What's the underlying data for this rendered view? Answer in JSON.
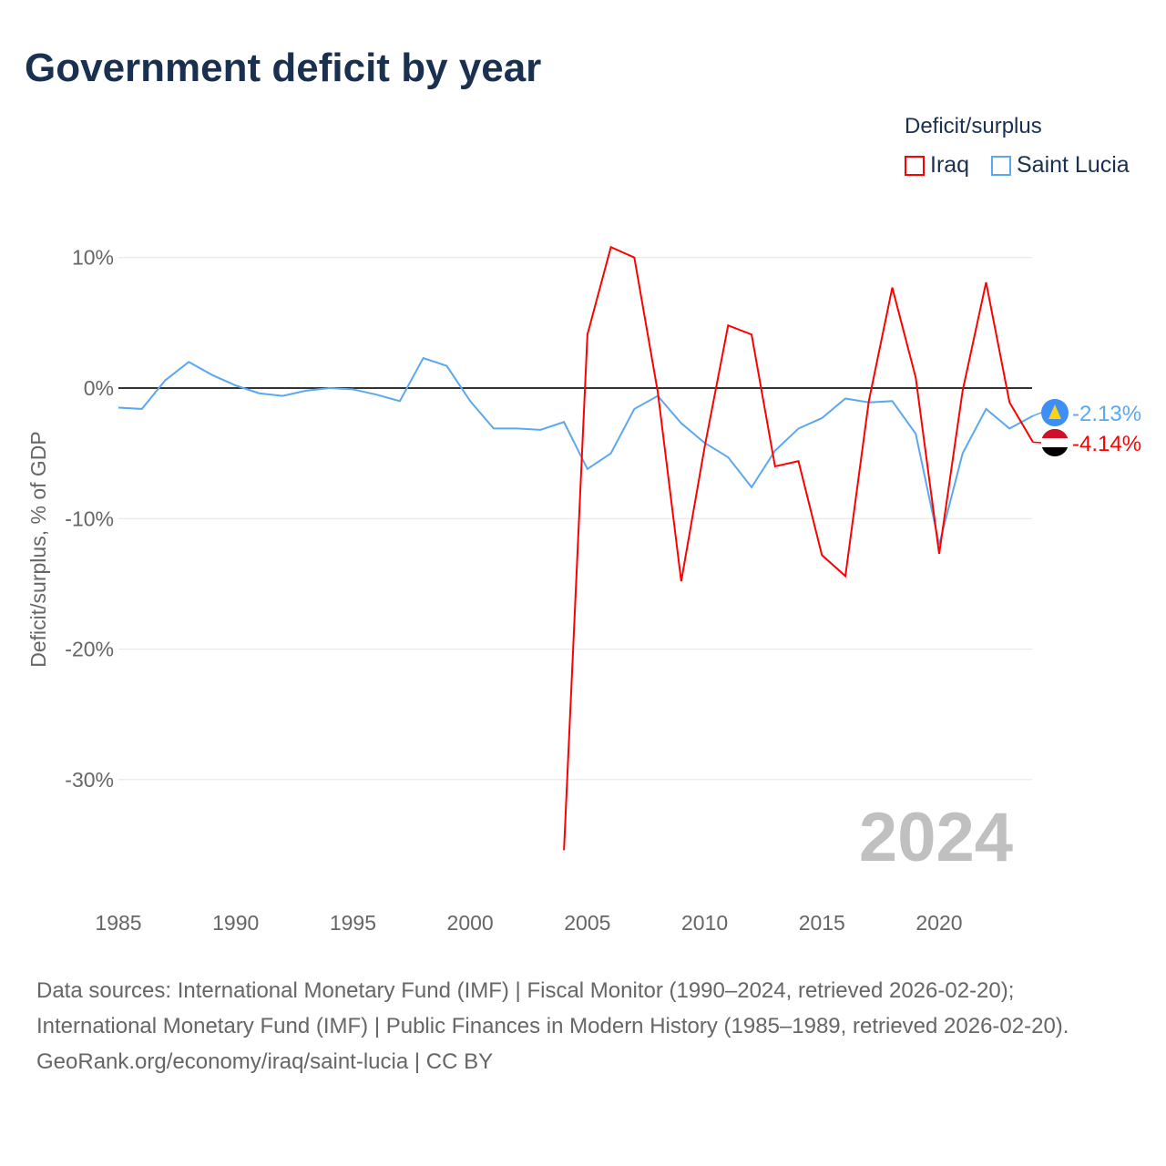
{
  "title": "Government deficit by year",
  "legend": {
    "title": "Deficit/surplus",
    "items": [
      {
        "label": "Iraq",
        "color": "#ff0000"
      },
      {
        "label": "Saint Lucia",
        "color": "#5ca8f0"
      }
    ]
  },
  "year_watermark": "2024",
  "footer": {
    "sources": "Data sources: International Monetary Fund (IMF) | Fiscal Monitor (1990–2024, retrieved 2026-02-20); International Monetary Fund (IMF) | Public Finances in Modern History (1985–1989, retrieved 2026-02-20).",
    "credit": "GeoRank.org/economy/iraq/saint-lucia | CC BY"
  },
  "chart_data": {
    "type": "line",
    "title": "Government deficit by year",
    "xlabel": "",
    "ylabel": "Deficit/surplus, % of GDP",
    "xlim": [
      1985,
      2024
    ],
    "ylim": [
      -36,
      12
    ],
    "xticks": [
      1985,
      1990,
      1995,
      2000,
      2005,
      2010,
      2015,
      2020
    ],
    "yticks": [
      {
        "v": 10,
        "label": "10%"
      },
      {
        "v": 0,
        "label": "0%"
      },
      {
        "v": -10,
        "label": "-10%"
      },
      {
        "v": -20,
        "label": "-20%"
      },
      {
        "v": -30,
        "label": "-30%"
      }
    ],
    "series": [
      {
        "name": "Saint Lucia",
        "color": "#5ca8f0",
        "end_label": "-2.13%",
        "x_start": 1985,
        "values": [
          -1.5,
          -1.6,
          0.6,
          2.0,
          1.0,
          0.2,
          -0.4,
          -0.6,
          -0.2,
          0,
          -0.1,
          -0.5,
          -1.0,
          2.3,
          1.7,
          -1.0,
          -3.1,
          -3.1,
          -3.2,
          -2.6,
          -6.2,
          -5.0,
          -1.6,
          -0.6,
          -2.7,
          -4.2,
          -5.3,
          -7.6,
          -4.8,
          -3.1,
          -2.3,
          -0.8,
          -1.1,
          -1.0,
          -3.5,
          -12.0,
          -5.0,
          -1.6,
          -3.1,
          -2.13
        ]
      },
      {
        "name": "Iraq",
        "color": "#ff0000",
        "end_label": "-4.14%",
        "x_start": 2004,
        "values": [
          -35.4,
          4.1,
          10.8,
          10.0,
          -0.3,
          -14.8,
          -4.5,
          4.8,
          4.1,
          -6.0,
          -5.6,
          -12.8,
          -14.4,
          -1.0,
          7.7,
          0.8,
          -12.7,
          -0.2,
          8.1,
          -1.1,
          -4.14
        ]
      }
    ]
  }
}
